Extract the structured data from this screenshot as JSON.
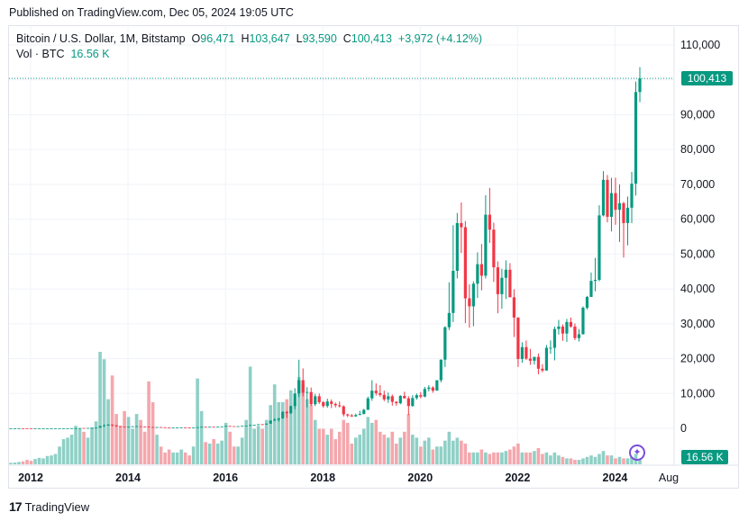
{
  "published": "Published on TradingView.com, Dec 05, 2024 19:05 UTC",
  "legend": {
    "symbol": "Bitcoin / U.S. Dollar, 1M, Bitstamp",
    "o_label": "O",
    "o_value": "96,471",
    "h_label": "H",
    "h_value": "103,647",
    "l_label": "L",
    "l_value": "93,590",
    "c_label": "C",
    "c_value": "100,413",
    "change": "+3,972 (+4.12%)",
    "vol_label": "Vol · BTC",
    "vol_value": "16.56 K"
  },
  "price_tag": "100,413",
  "vol_tag": "16.56 K",
  "brand": {
    "logo": "17",
    "name": "TradingView"
  },
  "event_icon": "event-icon",
  "colors": {
    "up": "#089981",
    "down": "#f23645",
    "vol_up": "#8fd0c6",
    "vol_down": "#f4a7ad"
  },
  "chart_data": {
    "type": "candlestick",
    "interval": "1M",
    "y_ticks": [
      "110,000",
      "100,000",
      "90,000",
      "80,000",
      "70,000",
      "60,000",
      "50,000",
      "40,000",
      "30,000",
      "20,000",
      "10,000",
      "0"
    ],
    "x_ticks": [
      "2012",
      "2014",
      "2016",
      "2018",
      "2020",
      "2022",
      "2024",
      "Aug"
    ],
    "ylim": [
      0,
      110000
    ],
    "grid": true,
    "last_close": 100413,
    "candles_close": [
      5,
      6,
      7,
      5,
      4,
      3,
      3,
      3,
      4,
      5,
      6,
      6,
      7,
      9,
      13,
      20,
      45,
      80,
      75,
      100,
      120,
      180,
      650,
      800,
      1100,
      900,
      600,
      500,
      450,
      450,
      580,
      600,
      500,
      480,
      370,
      320,
      360,
      300,
      240,
      230,
      250,
      260,
      280,
      250,
      230,
      240,
      320,
      430,
      420,
      440,
      420,
      450,
      540,
      670,
      620,
      570,
      610,
      700,
      740,
      960,
      970,
      1180,
      1070,
      1350,
      2200,
      2500,
      2880,
      4700,
      4350,
      6400,
      10000,
      13800,
      10200,
      10400,
      6900,
      9200,
      7500,
      6400,
      7700,
      7000,
      6600,
      6300,
      4000,
      3700,
      3400,
      3800,
      4100,
      5300,
      8600,
      10800,
      10100,
      9600,
      8300,
      9200,
      7600,
      7200,
      9300,
      8600,
      6400,
      8700,
      9500,
      9100,
      11300,
      11700,
      10800,
      13800,
      19700,
      29000,
      33100,
      45200,
      58900,
      57700,
      37300,
      35000,
      41500,
      47100,
      43800,
      61300,
      57000,
      46200,
      38500,
      43200,
      45500,
      37600,
      31800,
      19900,
      23300,
      20000,
      19400,
      20500,
      17100,
      16600,
      23100,
      23100,
      28500,
      29200,
      27200,
      30500,
      29200,
      25900,
      27000,
      34600,
      37700,
      42300,
      42600,
      61100,
      71300,
      60700,
      67500,
      62700,
      64600,
      58900,
      63300,
      70200,
      96500,
      100413
    ],
    "candles_high": [
      6,
      7,
      8,
      6,
      5,
      4,
      4,
      4,
      5,
      6,
      7,
      7,
      8,
      10,
      14,
      22,
      50,
      90,
      95,
      110,
      130,
      200,
      700,
      1150,
      1150,
      1100,
      700,
      650,
      500,
      500,
      650,
      680,
      550,
      500,
      400,
      350,
      380,
      330,
      280,
      250,
      260,
      270,
      300,
      280,
      260,
      260,
      330,
      460,
      470,
      460,
      440,
      480,
      570,
      780,
      700,
      630,
      630,
      750,
      760,
      980,
      1000,
      1200,
      1200,
      1400,
      2300,
      2900,
      2900,
      4900,
      5000,
      6500,
      11500,
      19700,
      17200,
      11800,
      11700,
      9900,
      10000,
      7800,
      8500,
      8300,
      7400,
      7700,
      6600,
      4200,
      4100,
      4200,
      5000,
      5600,
      9100,
      13800,
      12900,
      12400,
      10800,
      10300,
      9700,
      7800,
      9500,
      10500,
      9200,
      9500,
      10000,
      10400,
      11900,
      12400,
      12100,
      13800,
      19800,
      29300,
      41900,
      58300,
      61800,
      64800,
      59500,
      41300,
      42200,
      50500,
      52900,
      66900,
      69000,
      59000,
      47900,
      45800,
      48200,
      47400,
      39900,
      31800,
      24700,
      25200,
      22800,
      20500,
      21500,
      18400,
      23900,
      25200,
      29200,
      31100,
      29800,
      31400,
      31800,
      30100,
      28500,
      35000,
      38000,
      44700,
      48900,
      64000,
      73800,
      72700,
      71900,
      71900,
      70000,
      65000,
      66500,
      73600,
      99500,
      103647
    ],
    "candles_low": [
      4,
      4,
      5,
      4,
      2,
      2,
      2,
      2,
      3,
      4,
      5,
      5,
      6,
      7,
      9,
      13,
      30,
      50,
      65,
      85,
      100,
      110,
      200,
      450,
      750,
      550,
      400,
      350,
      400,
      380,
      450,
      450,
      400,
      300,
      270,
      160,
      290,
      240,
      150,
      200,
      220,
      210,
      240,
      220,
      210,
      230,
      240,
      330,
      360,
      350,
      380,
      400,
      440,
      520,
      470,
      540,
      540,
      620,
      700,
      720,
      760,
      900,
      900,
      1100,
      1300,
      2100,
      1900,
      2700,
      3000,
      4100,
      5500,
      9000,
      9200,
      6000,
      6400,
      6400,
      7000,
      5900,
      5900,
      5800,
      6000,
      6000,
      3400,
      3200,
      3300,
      3400,
      3900,
      4000,
      5600,
      7900,
      9400,
      9100,
      7800,
      7300,
      6500,
      6500,
      6900,
      8600,
      3800,
      6200,
      8200,
      8600,
      8900,
      10600,
      10200,
      11700,
      13200,
      17600,
      28200,
      30500,
      43000,
      50300,
      30200,
      28900,
      29300,
      37400,
      39600,
      43000,
      53200,
      42000,
      33000,
      34300,
      37100,
      37900,
      26200,
      17600,
      18800,
      19600,
      18200,
      18300,
      15500,
      16100,
      16500,
      21400,
      19500,
      26900,
      25100,
      24800,
      28900,
      25300,
      24900,
      26900,
      34100,
      37700,
      39300,
      42200,
      60800,
      59100,
      56500,
      58400,
      53500,
      49000,
      52500,
      58900,
      66800,
      93590
    ],
    "volume_kBTC": [
      5,
      6,
      8,
      10,
      15,
      12,
      18,
      22,
      20,
      28,
      30,
      35,
      60,
      85,
      90,
      100,
      130,
      120,
      110,
      90,
      125,
      145,
      380,
      355,
      220,
      300,
      170,
      130,
      180,
      160,
      120,
      170,
      150,
      110,
      280,
      210,
      100,
      60,
      40,
      50,
      40,
      40,
      50,
      40,
      30,
      60,
      290,
      180,
      75,
      70,
      85,
      70,
      80,
      140,
      110,
      60,
      60,
      90,
      150,
      330,
      120,
      130,
      120,
      150,
      200,
      270,
      210,
      210,
      220,
      250,
      210,
      295,
      270,
      220,
      200,
      150,
      120,
      120,
      100,
      120,
      85,
      110,
      150,
      140,
      70,
      90,
      100,
      120,
      160,
      140,
      150,
      110,
      100,
      90,
      110,
      70,
      90,
      110,
      170,
      100,
      90,
      60,
      80,
      90,
      50,
      60,
      60,
      80,
      110,
      80,
      90,
      80,
      70,
      40,
      40,
      40,
      50,
      40,
      35,
      40,
      40,
      40,
      45,
      50,
      60,
      70,
      40,
      40,
      40,
      45,
      55,
      35,
      40,
      30,
      40,
      30,
      25,
      20,
      20,
      15,
      15,
      20,
      25,
      30,
      25,
      35,
      45,
      30,
      30,
      20,
      25,
      20,
      20,
      25,
      35,
      16.56
    ]
  }
}
